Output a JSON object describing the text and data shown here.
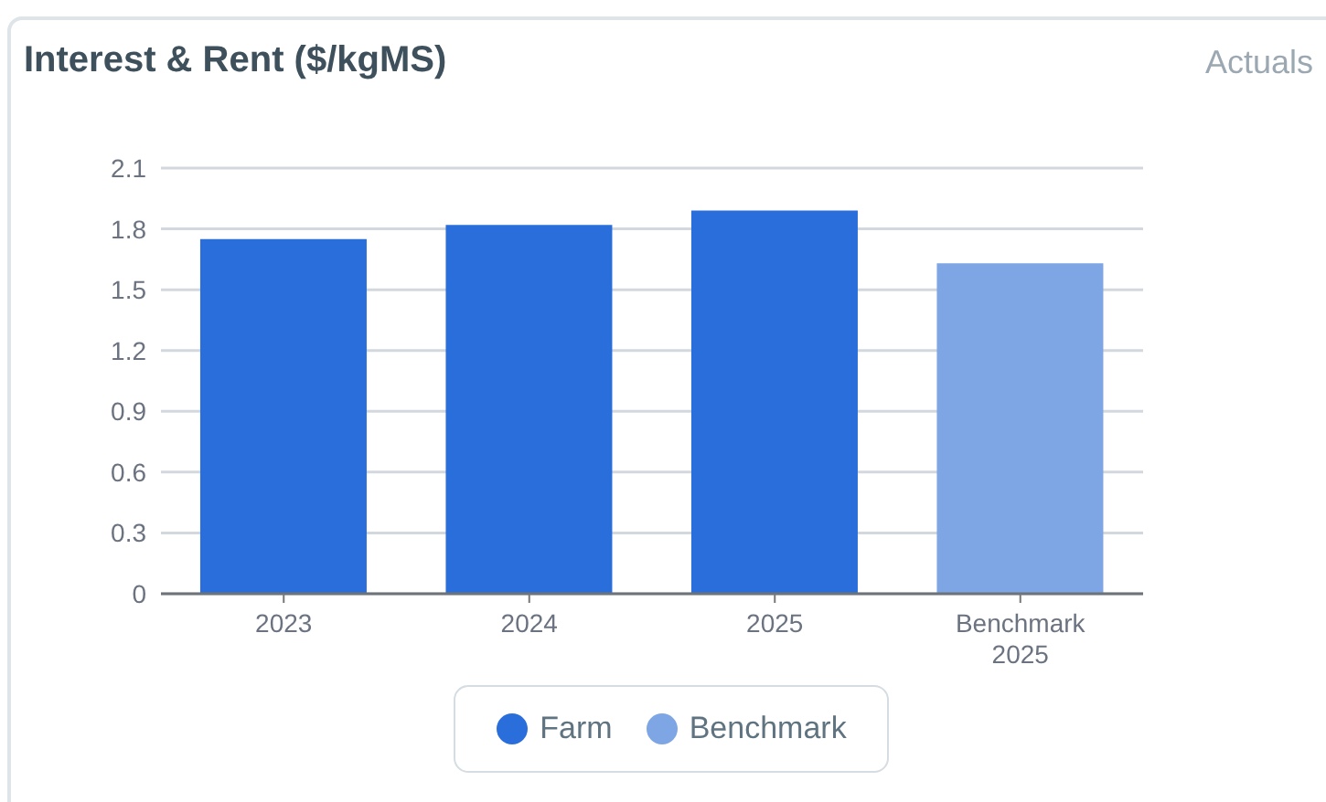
{
  "chart_data": {
    "type": "bar",
    "title": "Interest & Rent ($/kgMS)",
    "annotations": [
      "Actuals"
    ],
    "categories": [
      "2023",
      "2024",
      "2025",
      "Benchmark 2025"
    ],
    "series": [
      {
        "name": "Farm",
        "color": "#2a6edb",
        "values": [
          1.75,
          1.82,
          1.89,
          null
        ]
      },
      {
        "name": "Benchmark",
        "color": "#7ea5e4",
        "values": [
          null,
          null,
          null,
          1.63
        ]
      }
    ],
    "ylim": [
      0,
      2.1
    ],
    "yticks": [
      0,
      0.3,
      0.6,
      0.9,
      1.2,
      1.5,
      1.8,
      2.1
    ],
    "grid": "y",
    "legend": "bottom"
  }
}
